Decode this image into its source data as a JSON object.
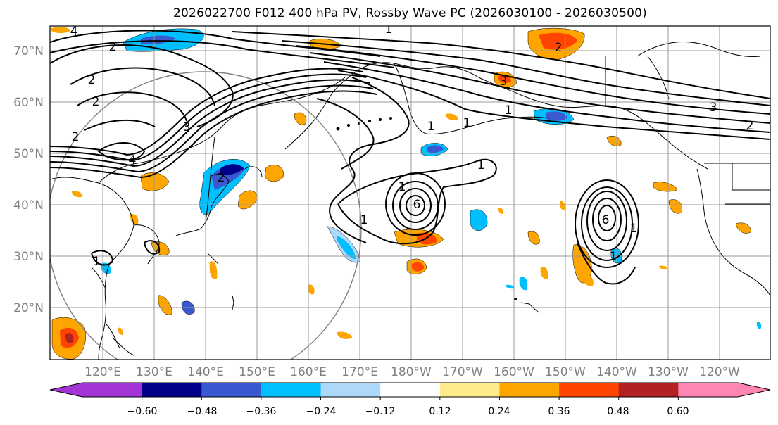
{
  "title": "2026022700 F012 400 hPa PV, Rossby Wave PC (2026030100 - 2026030500)",
  "lat_labels": [
    "70°N",
    "60°N",
    "50°N",
    "40°N",
    "30°N",
    "20°N"
  ],
  "lon_labels": [
    "120°E",
    "130°E",
    "140°E",
    "150°E",
    "160°E",
    "170°E",
    "180°W",
    "170°W",
    "160°W",
    "150°W",
    "140°W",
    "130°W",
    "120°W"
  ],
  "contour_labels": [
    "4",
    "2",
    "2",
    "2",
    "4",
    "1",
    "1",
    "1",
    "1",
    "3",
    "1",
    "1",
    "2",
    "1",
    "1",
    "1",
    "6",
    "1",
    "6",
    "2",
    "3",
    "2",
    "2",
    "3"
  ],
  "colorbar": {
    "ticks": [
      "−0.60",
      "−0.48",
      "−0.36",
      "−0.24",
      "−0.12",
      "0.12",
      "0.24",
      "0.36",
      "0.48",
      "0.60"
    ],
    "colors": [
      "#a335d6",
      "#00008b",
      "#3a59d1",
      "#00bfff",
      "#add8f9",
      "#ffffff",
      "#ffeb8a",
      "#ffa500",
      "#ff4500",
      "#b22222",
      "#ff86b2",
      "#ff86b2"
    ]
  }
}
